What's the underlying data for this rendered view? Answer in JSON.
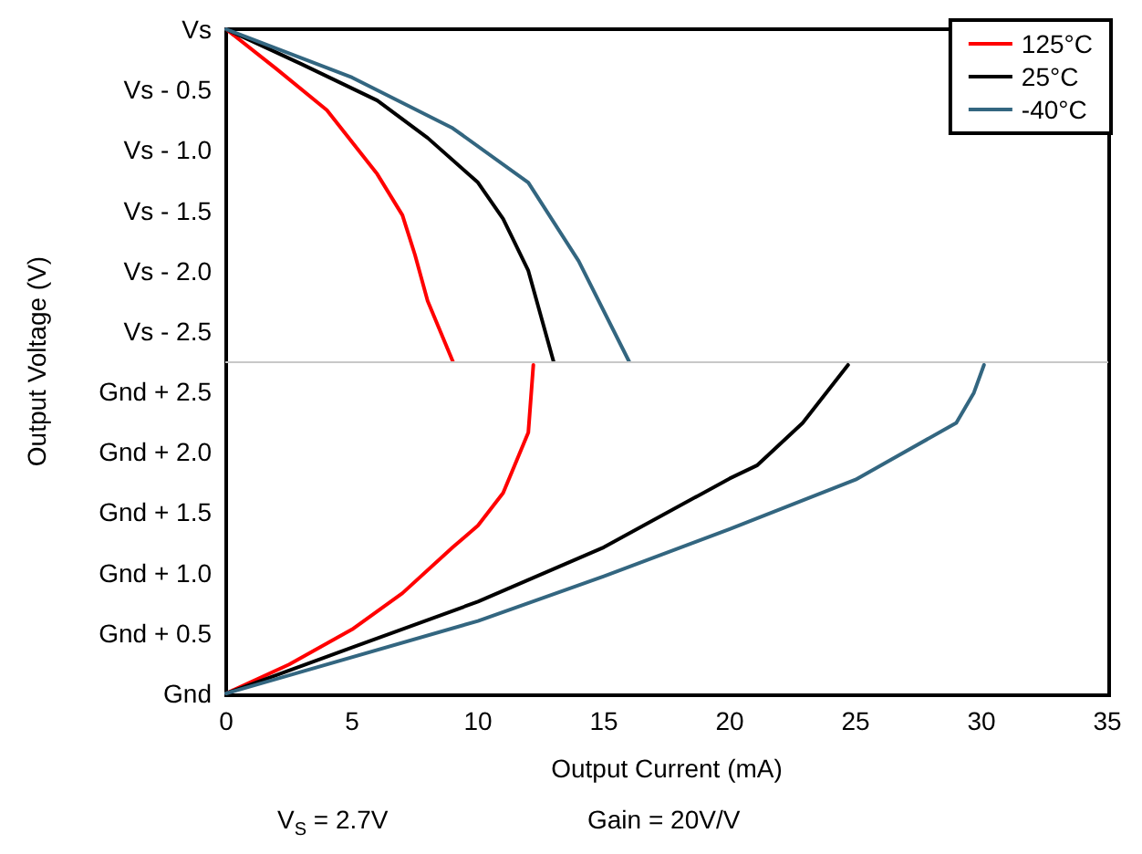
{
  "chart_data": [
    {
      "type": "line",
      "xlim": [
        0,
        35
      ],
      "xticks": [
        0,
        5,
        10,
        15,
        20,
        25,
        30,
        35
      ],
      "tick_labels": "y",
      "ylim": [
        -2.75,
        0
      ],
      "yticks": [
        {
          "value": -2.5,
          "label": "Vs - 2.5"
        },
        {
          "value": -2,
          "label": "Vs - 2.0"
        },
        {
          "value": -1.5,
          "label": "Vs - 1.5"
        },
        {
          "value": -1,
          "label": "Vs - 1.0"
        },
        {
          "value": -0.5,
          "label": "Vs - 0.5"
        },
        {
          "value": 0,
          "label": "Vs"
        }
      ],
      "series": [
        {
          "name": "125°C",
          "color": "#ff0000",
          "x": [
            0,
            2,
            4,
            6,
            7,
            7.5,
            8,
            9
          ],
          "values": [
            0,
            -0.33,
            -0.67,
            -1.2,
            -1.54,
            -1.87,
            -2.25,
            -2.75
          ]
        },
        {
          "name": "25°C",
          "color": "#000000",
          "x": [
            0,
            3,
            6,
            8,
            10,
            11,
            12,
            13
          ],
          "values": [
            0,
            -0.29,
            -0.59,
            -0.9,
            -1.27,
            -1.57,
            -2,
            -2.75
          ]
        },
        {
          "name": "-40°C",
          "color": "#336680",
          "x": [
            0,
            5,
            9,
            12,
            14,
            16
          ],
          "values": [
            0,
            -0.4,
            -0.82,
            -1.27,
            -1.92,
            -2.75
          ]
        }
      ],
      "legend": "top right",
      "marker": "none",
      "line_style": "solid"
    },
    {
      "type": "line",
      "xlabel": "Output Current (mA)",
      "ylabel": "Output Voltage (V)",
      "xlim": [
        0,
        35
      ],
      "xticks": [
        0,
        5,
        10,
        15,
        20,
        25,
        30,
        35
      ],
      "ylim": [
        0,
        2.75
      ],
      "yticks": [
        {
          "value": 0,
          "label": "Gnd"
        },
        {
          "value": 0.5,
          "label": "Gnd + 0.5"
        },
        {
          "value": 1,
          "label": "Gnd + 1.0"
        },
        {
          "value": 1.5,
          "label": "Gnd + 1.5"
        },
        {
          "value": 2,
          "label": "Gnd + 2.0"
        },
        {
          "value": 2.5,
          "label": "Gnd + 2.5"
        }
      ],
      "series": [
        {
          "color": "#ff0000",
          "x": [
            0,
            2.5,
            5,
            7,
            9,
            10,
            11,
            12,
            12.2
          ],
          "values": [
            0,
            0.24,
            0.53,
            0.83,
            1.21,
            1.39,
            1.66,
            2.16,
            2.72
          ]
        },
        {
          "color": "#000000",
          "x": [
            0,
            5,
            10,
            15,
            20,
            21.1,
            22.9,
            24.7
          ],
          "values": [
            0,
            0.38,
            0.76,
            1.21,
            1.78,
            1.89,
            2.24,
            2.72
          ]
        },
        {
          "color": "#336680",
          "x": [
            0,
            10,
            15,
            20,
            25,
            29,
            29.7,
            30.1
          ],
          "values": [
            0,
            0.6,
            0.97,
            1.36,
            1.77,
            2.24,
            2.49,
            2.72
          ]
        }
      ],
      "marker": "none",
      "line_style": "solid",
      "annotations": [
        "V$_{S}$ = 2.7V",
        "Gain = 20V/V"
      ]
    }
  ]
}
